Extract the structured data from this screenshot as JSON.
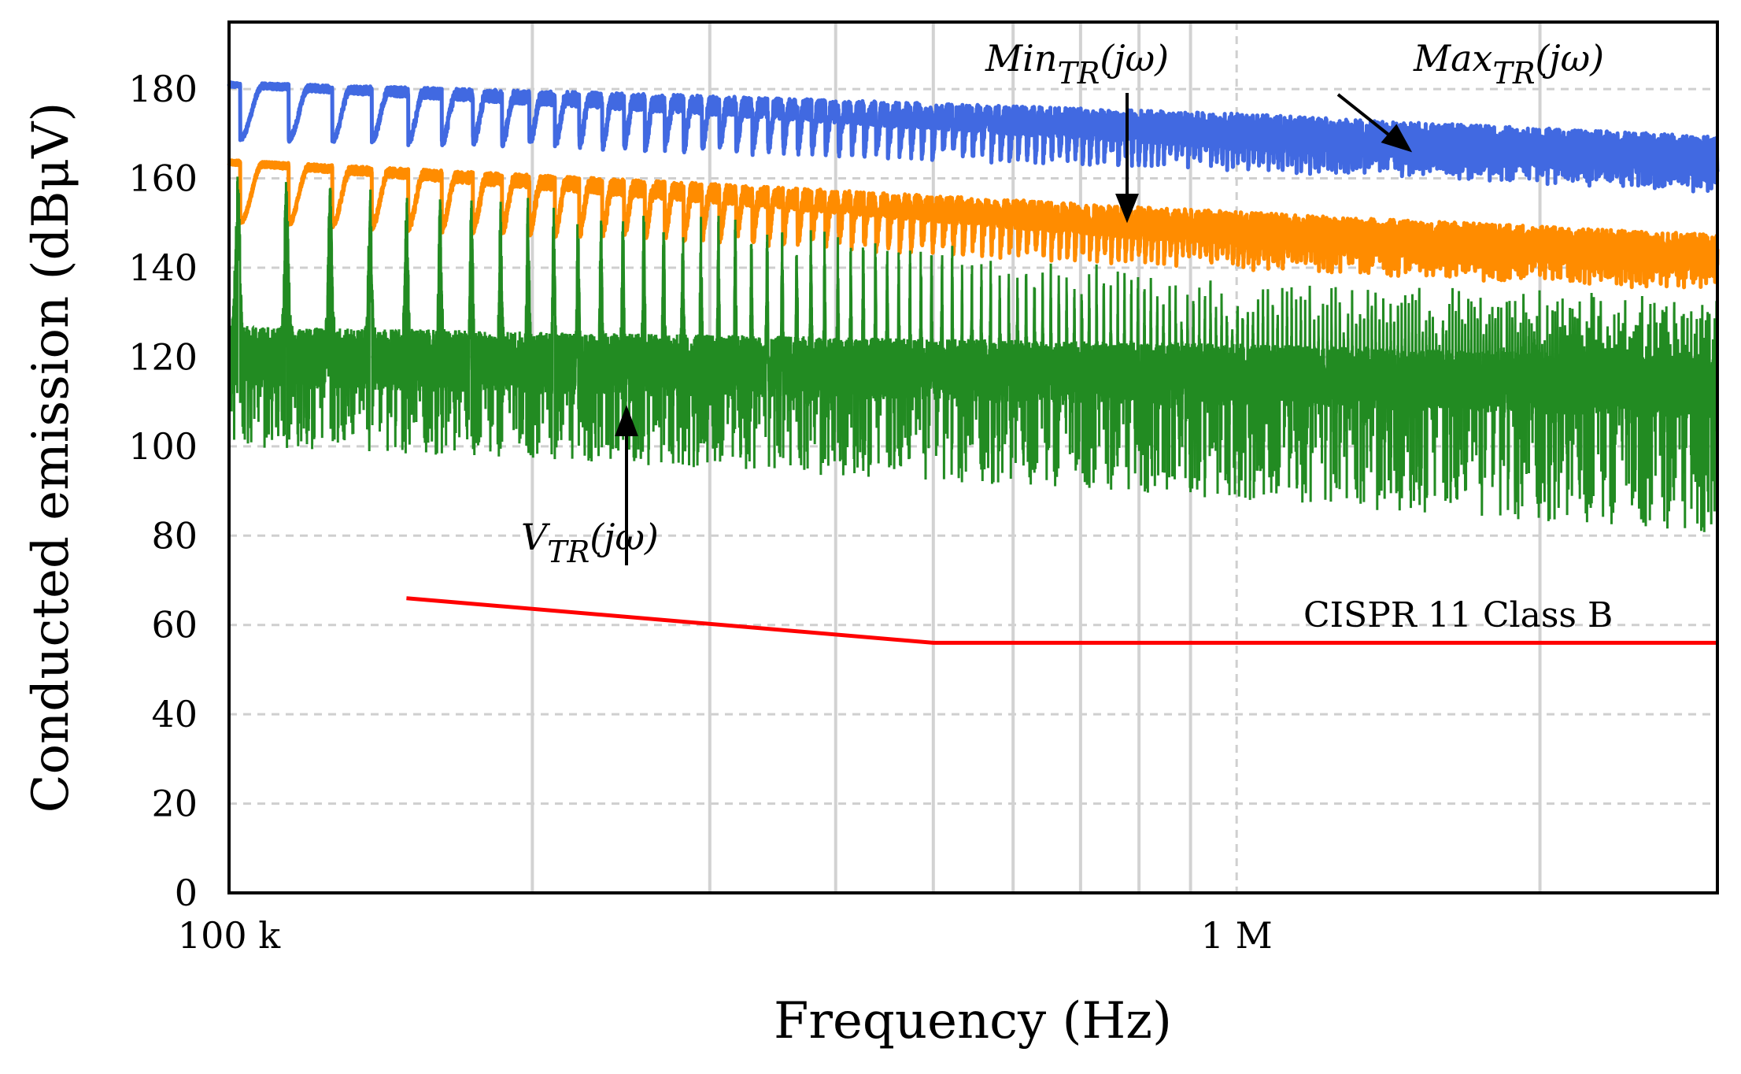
{
  "chart_data": {
    "type": "line",
    "xscale": "log",
    "xlabel": "Frequency (Hz)",
    "ylabel": "Conducted emission (dBμV)",
    "xlim": [
      100000,
      3000000
    ],
    "ylim": [
      0,
      195
    ],
    "xticks": [
      {
        "value": 100000,
        "label": "100 k"
      },
      {
        "value": 1000000,
        "label": "1 M"
      }
    ],
    "yticks": [
      {
        "value": 0,
        "label": "0"
      },
      {
        "value": 20,
        "label": "20"
      },
      {
        "value": 40,
        "label": "40"
      },
      {
        "value": 60,
        "label": "60"
      },
      {
        "value": 80,
        "label": "80"
      },
      {
        "value": 100,
        "label": "100"
      },
      {
        "value": 120,
        "label": "120"
      },
      {
        "value": 140,
        "label": "140"
      },
      {
        "value": 160,
        "label": "160"
      },
      {
        "value": 180,
        "label": "180"
      }
    ],
    "grid": {
      "vertical_solid": [
        200000,
        300000,
        400000,
        500000,
        600000,
        700000,
        800000,
        900000,
        2000000
      ],
      "vertical_dashed": [
        1000000
      ],
      "horizontal_dashed": [
        20,
        40,
        60,
        80,
        100,
        120,
        140,
        160,
        180
      ]
    },
    "harmonic_spacing_hz": 12000,
    "series": [
      {
        "name": "Max_TR(jω)",
        "color": "#4169E1",
        "trend": [
          [
            100000,
            175
          ],
          [
            300000,
            172
          ],
          [
            1000000,
            168
          ],
          [
            3000000,
            163
          ]
        ],
        "ripple_low_freq": 10,
        "ripple_high_freq": 4
      },
      {
        "name": "Min_TR(jω)",
        "color": "#FF8C00",
        "trend": [
          [
            100000,
            157
          ],
          [
            300000,
            152
          ],
          [
            1000000,
            146
          ],
          [
            3000000,
            141
          ]
        ],
        "ripple_low_freq": 11,
        "ripple_high_freq": 4
      },
      {
        "name": "V_TR(jω)",
        "color": "#228B22",
        "trend": [
          [
            100000,
            120
          ],
          [
            300000,
            118
          ],
          [
            1000000,
            116
          ],
          [
            3000000,
            113
          ]
        ],
        "peak_envelope": [
          [
            100000,
            155
          ],
          [
            300000,
            145
          ],
          [
            1000000,
            130
          ],
          [
            3000000,
            127
          ]
        ],
        "floor_envelope": [
          [
            100000,
            100
          ],
          [
            300000,
            95
          ],
          [
            1000000,
            88
          ],
          [
            3000000,
            80
          ]
        ]
      },
      {
        "name": "CISPR 11 Class B",
        "color": "#FF0000",
        "points": [
          [
            150000,
            66
          ],
          [
            500000,
            56
          ],
          [
            3000000,
            56
          ]
        ]
      }
    ],
    "annotations": [
      {
        "id": "vtr",
        "base": "V",
        "sub": "TR",
        "arg": "(jω)"
      },
      {
        "id": "min",
        "base": "Min",
        "sub": "TR",
        "arg": "(jω)"
      },
      {
        "id": "max",
        "base": "Max",
        "sub": "TR",
        "arg": "(jω)"
      },
      {
        "id": "cispr",
        "text": "CISPR 11 Class B"
      }
    ]
  }
}
